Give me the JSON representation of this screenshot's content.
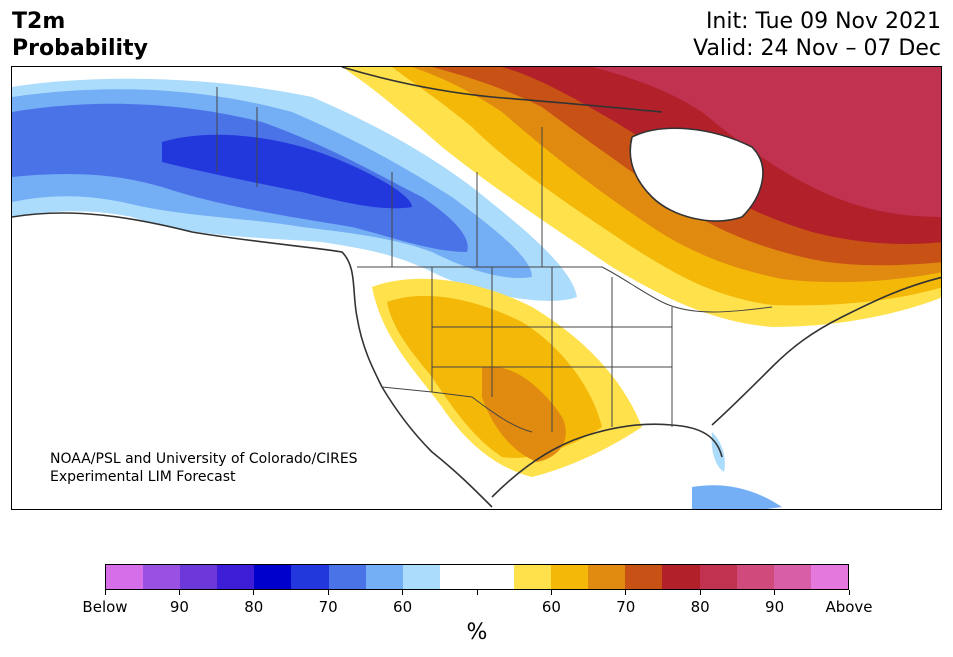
{
  "title": {
    "left_line1": "T2m",
    "left_line2": "Probability",
    "right_line1": "Init: Tue 09 Nov 2021",
    "right_line2": "Valid: 24 Nov – 07 Dec"
  },
  "credit": {
    "line1": "NOAA/PSL and University of Colorado/CIRES",
    "line2": "Experimental LIM Forecast"
  },
  "colorbar": {
    "colors": [
      "#d56ee8",
      "#9a50e2",
      "#6c38da",
      "#3d1ed6",
      "#0000cc",
      "#2338dc",
      "#4b73e8",
      "#74aef4",
      "#acdcfc",
      "#ffffff",
      "#ffffff",
      "#ffe14c",
      "#f4b808",
      "#e08a10",
      "#c85216",
      "#b2202a",
      "#c03250",
      "#d04a7c",
      "#d85ea8",
      "#e478dc"
    ],
    "labels": [
      "Below",
      "90",
      "80",
      "70",
      "60",
      "",
      "60",
      "70",
      "80",
      "90",
      "Above"
    ],
    "unit": "%"
  },
  "map_colors": {
    "land": "#ffffff",
    "coast": "#333333",
    "border": "#444444"
  }
}
